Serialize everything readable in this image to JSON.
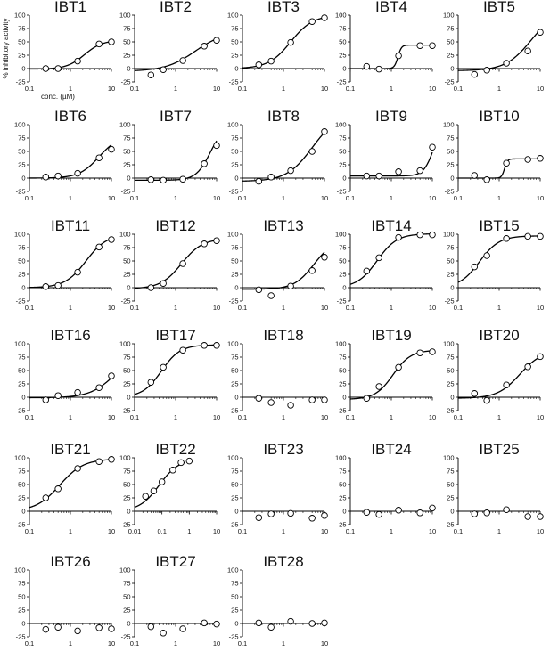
{
  "figure": {
    "ylabel": "% inhibitory activity",
    "xlabel": "conc. (µM)"
  },
  "chart_data": [
    {
      "title": "IBT1",
      "type": "scatter",
      "ylim": [
        -25,
        100
      ],
      "xscale": "log",
      "xlim": [
        0.1,
        10
      ],
      "xticks": [
        "0.1",
        "1",
        "10"
      ],
      "yticks": [
        "-25",
        "0",
        "25",
        "50",
        "75",
        "100"
      ],
      "points": {
        "x": [
          0.25,
          0.5,
          1.5,
          5,
          10
        ],
        "y": [
          0,
          0,
          14,
          46,
          50
        ]
      },
      "fit": {
        "bottom": -1,
        "top": 53,
        "ec50": 2.2,
        "hill": 2.0
      },
      "xlabel": "conc. (µM)",
      "ylabel": "% inhibitory activity"
    },
    {
      "title": "IBT2",
      "type": "scatter",
      "ylim": [
        -25,
        100
      ],
      "xscale": "log",
      "xlim": [
        0.1,
        10
      ],
      "xticks": [
        "0.1",
        "1",
        "10"
      ],
      "yticks": [
        "-25",
        "0",
        "25",
        "50",
        "75",
        "100"
      ],
      "points": {
        "x": [
          0.25,
          0.5,
          1.5,
          5,
          10
        ],
        "y": [
          -12,
          -2,
          15,
          42,
          53
        ]
      },
      "fit": {
        "bottom": -5,
        "top": 70,
        "ec50": 3,
        "hill": 1.2
      }
    },
    {
      "title": "IBT3",
      "type": "scatter",
      "ylim": [
        -25,
        100
      ],
      "xscale": "log",
      "xlim": [
        0.1,
        10
      ],
      "xticks": [
        "0.1",
        "1",
        "10"
      ],
      "yticks": [
        "-25",
        "0",
        "25",
        "50",
        "75",
        "100"
      ],
      "points": {
        "x": [
          0.25,
          0.5,
          1.5,
          5,
          10
        ],
        "y": [
          7,
          14,
          49,
          88,
          95
        ]
      },
      "fit": {
        "bottom": 0,
        "top": 100,
        "ec50": 1.5,
        "hill": 1.6
      }
    },
    {
      "title": "IBT4",
      "type": "scatter",
      "ylim": [
        -25,
        100
      ],
      "xscale": "log",
      "xlim": [
        0.1,
        10
      ],
      "xticks": [
        "0.1",
        "1",
        "10"
      ],
      "yticks": [
        "-25",
        "0",
        "25",
        "50",
        "75",
        "100"
      ],
      "points": {
        "x": [
          0.25,
          0.5,
          1.5,
          5,
          10
        ],
        "y": [
          4,
          -1,
          24,
          43,
          43
        ]
      },
      "fit": {
        "bottom": 0,
        "top": 44,
        "ec50": 1.45,
        "hill": 10
      }
    },
    {
      "title": "IBT5",
      "type": "scatter",
      "ylim": [
        -25,
        100
      ],
      "xscale": "log",
      "xlim": [
        0.1,
        10
      ],
      "xticks": [
        "0.1",
        "1",
        "10"
      ],
      "yticks": [
        "-25",
        "0",
        "25",
        "50",
        "75",
        "100"
      ],
      "points": {
        "x": [
          0.25,
          0.5,
          1.5,
          5,
          10
        ],
        "y": [
          -11,
          -3,
          10,
          33,
          68
        ]
      },
      "fit": {
        "bottom": -4,
        "top": 110,
        "ec50": 6,
        "hill": 1.4
      }
    },
    {
      "title": "IBT6",
      "type": "scatter",
      "ylim": [
        -25,
        100
      ],
      "xscale": "log",
      "xlim": [
        0.1,
        10
      ],
      "xticks": [
        "0.1",
        "1",
        "10"
      ],
      "yticks": [
        "-25",
        "0",
        "25",
        "50",
        "75",
        "100"
      ],
      "points": {
        "x": [
          0.25,
          0.5,
          1.5,
          5,
          10
        ],
        "y": [
          2,
          4,
          9,
          38,
          54
        ]
      },
      "fit": {
        "bottom": 0,
        "top": 80,
        "ec50": 5,
        "hill": 1.8
      }
    },
    {
      "title": "IBT7",
      "type": "scatter",
      "ylim": [
        -25,
        100
      ],
      "xscale": "log",
      "xlim": [
        0.1,
        10
      ],
      "xticks": [
        "0.1",
        "1",
        "10"
      ],
      "yticks": [
        "-25",
        "0",
        "25",
        "50",
        "75",
        "100"
      ],
      "points": {
        "x": [
          0.25,
          0.5,
          1.5,
          5,
          10
        ],
        "y": [
          -3,
          -4,
          -2,
          27,
          61
        ]
      },
      "fit": {
        "bottom": -4,
        "top": 100,
        "ec50": 7,
        "hill": 2.5
      }
    },
    {
      "title": "IBT8",
      "type": "scatter",
      "ylim": [
        -25,
        100
      ],
      "xscale": "log",
      "xlim": [
        0.1,
        10
      ],
      "xticks": [
        "0.1",
        "1",
        "10"
      ],
      "yticks": [
        "-25",
        "0",
        "25",
        "50",
        "75",
        "100"
      ],
      "points": {
        "x": [
          0.25,
          0.5,
          1.5,
          5,
          10
        ],
        "y": [
          -6,
          2,
          14,
          50,
          87
        ]
      },
      "fit": {
        "bottom": -6,
        "top": 120,
        "ec50": 5,
        "hill": 1.4
      }
    },
    {
      "title": "IBT9",
      "type": "scatter",
      "ylim": [
        -25,
        100
      ],
      "xscale": "log",
      "xlim": [
        0.1,
        10
      ],
      "xticks": [
        "0.1",
        "1",
        "10"
      ],
      "yticks": [
        "-25",
        "0",
        "25",
        "50",
        "75",
        "100"
      ],
      "points": {
        "x": [
          0.25,
          0.5,
          1.5,
          5,
          10
        ],
        "y": [
          4,
          4,
          12,
          14,
          58
        ]
      },
      "fit": {
        "bottom": 4,
        "top": 110,
        "ec50": 11,
        "hill": 3.5
      }
    },
    {
      "title": "IBT10",
      "type": "scatter",
      "ylim": [
        -25,
        100
      ],
      "xscale": "log",
      "xlim": [
        0.1,
        10
      ],
      "xticks": [
        "0.1",
        "1",
        "10"
      ],
      "yticks": [
        "-25",
        "0",
        "25",
        "50",
        "75",
        "100"
      ],
      "points": {
        "x": [
          0.25,
          0.5,
          1.5,
          5,
          10
        ],
        "y": [
          5,
          -3,
          28,
          35,
          37
        ]
      },
      "fit": {
        "bottom": 0,
        "top": 36,
        "ec50": 1.35,
        "hill": 12
      }
    },
    {
      "title": "IBT11",
      "type": "scatter",
      "ylim": [
        -25,
        100
      ],
      "xscale": "log",
      "xlim": [
        0.1,
        10
      ],
      "xticks": [
        "0.1",
        "1",
        "10"
      ],
      "yticks": [
        "-25",
        "0",
        "25",
        "50",
        "75",
        "100"
      ],
      "points": {
        "x": [
          0.25,
          0.5,
          1.5,
          5,
          10
        ],
        "y": [
          2,
          4,
          29,
          76,
          90
        ]
      },
      "fit": {
        "bottom": 0,
        "top": 100,
        "ec50": 2.4,
        "hill": 1.7
      }
    },
    {
      "title": "IBT12",
      "type": "scatter",
      "ylim": [
        -25,
        100
      ],
      "xscale": "log",
      "xlim": [
        0.1,
        10
      ],
      "xticks": [
        "0.1",
        "1",
        "10"
      ],
      "yticks": [
        "-25",
        "0",
        "25",
        "50",
        "75",
        "100"
      ],
      "points": {
        "x": [
          0.25,
          0.5,
          1.5,
          5,
          10
        ],
        "y": [
          0,
          8,
          45,
          82,
          88
        ]
      },
      "fit": {
        "bottom": -2,
        "top": 92,
        "ec50": 1.4,
        "hill": 1.7
      }
    },
    {
      "title": "IBT13",
      "type": "scatter",
      "ylim": [
        -25,
        100
      ],
      "xscale": "log",
      "xlim": [
        0.1,
        10
      ],
      "xticks": [
        "0.1",
        "1",
        "10"
      ],
      "yticks": [
        "-25",
        "0",
        "25",
        "50",
        "75",
        "100"
      ],
      "points": {
        "x": [
          0.25,
          0.5,
          1.5,
          5,
          10
        ],
        "y": [
          -4,
          -15,
          3,
          32,
          57
        ]
      },
      "fit": {
        "bottom": -3,
        "top": 90,
        "ec50": 5.5,
        "hill": 1.8
      }
    },
    {
      "title": "IBT14",
      "type": "scatter",
      "ylim": [
        -25,
        100
      ],
      "xscale": "log",
      "xlim": [
        0.1,
        10
      ],
      "xticks": [
        "0.1",
        "1",
        "10"
      ],
      "yticks": [
        "-25",
        "0",
        "25",
        "50",
        "75",
        "100"
      ],
      "points": {
        "x": [
          0.25,
          0.5,
          1.5,
          5,
          10
        ],
        "y": [
          31,
          56,
          94,
          99,
          99
        ]
      },
      "fit": {
        "bottom": 0,
        "top": 101,
        "ec50": 0.45,
        "hill": 1.8
      }
    },
    {
      "title": "IBT15",
      "type": "scatter",
      "ylim": [
        -25,
        100
      ],
      "xscale": "log",
      "xlim": [
        0.1,
        10
      ],
      "xticks": [
        "0.1",
        "1",
        "10"
      ],
      "yticks": [
        "-25",
        "0",
        "25",
        "50",
        "75",
        "100"
      ],
      "points": {
        "x": [
          0.25,
          0.5,
          1.5,
          5,
          10
        ],
        "y": [
          39,
          60,
          92,
          96,
          96
        ]
      },
      "fit": {
        "bottom": 0,
        "top": 97,
        "ec50": 0.33,
        "hill": 1.8
      }
    },
    {
      "title": "IBT16",
      "type": "scatter",
      "ylim": [
        -25,
        100
      ],
      "xscale": "log",
      "xlim": [
        0.1,
        10
      ],
      "xticks": [
        "0.1",
        "1",
        "10"
      ],
      "yticks": [
        "-25",
        "0",
        "25",
        "50",
        "75",
        "100"
      ],
      "points": {
        "x": [
          0.25,
          0.5,
          1.5,
          5,
          10
        ],
        "y": [
          -5,
          3,
          9,
          18,
          40
        ]
      },
      "fit": {
        "bottom": -1,
        "top": 90,
        "ec50": 13,
        "hill": 1.4
      }
    },
    {
      "title": "IBT17",
      "type": "scatter",
      "ylim": [
        -25,
        100
      ],
      "xscale": "log",
      "xlim": [
        0.1,
        10
      ],
      "xticks": [
        "0.1",
        "1",
        "10"
      ],
      "yticks": [
        "-25",
        "0",
        "25",
        "50",
        "75",
        "100"
      ],
      "points": {
        "x": [
          0.25,
          0.5,
          1.5,
          5,
          10
        ],
        "y": [
          28,
          56,
          88,
          97,
          97
        ]
      },
      "fit": {
        "bottom": 0,
        "top": 98,
        "ec50": 0.45,
        "hill": 1.9
      }
    },
    {
      "title": "IBT18",
      "type": "scatter",
      "ylim": [
        -25,
        100
      ],
      "xscale": "log",
      "xlim": [
        0.1,
        10
      ],
      "xticks": [
        "0.1",
        "1",
        "10"
      ],
      "yticks": [
        "-25",
        "0",
        "25",
        "50",
        "75",
        "100"
      ],
      "points": {
        "x": [
          0.25,
          0.5,
          1.5,
          5,
          10
        ],
        "y": [
          -2,
          -10,
          -15,
          -5,
          -5
        ]
      }
    },
    {
      "title": "IBT19",
      "type": "scatter",
      "ylim": [
        -25,
        100
      ],
      "xscale": "log",
      "xlim": [
        0.1,
        10
      ],
      "xticks": [
        "0.1",
        "1",
        "10"
      ],
      "yticks": [
        "-25",
        "0",
        "25",
        "50",
        "75",
        "100"
      ],
      "points": {
        "x": [
          0.25,
          0.5,
          1.5,
          5,
          10
        ],
        "y": [
          -2,
          20,
          56,
          83,
          85
        ]
      },
      "fit": {
        "bottom": -4,
        "top": 88,
        "ec50": 1.1,
        "hill": 2.0
      }
    },
    {
      "title": "IBT20",
      "type": "scatter",
      "ylim": [
        -25,
        100
      ],
      "xscale": "log",
      "xlim": [
        0.1,
        10
      ],
      "xticks": [
        "0.1",
        "1",
        "10"
      ],
      "yticks": [
        "-25",
        "0",
        "25",
        "50",
        "75",
        "100"
      ],
      "points": {
        "x": [
          0.25,
          0.5,
          1.5,
          5,
          10
        ],
        "y": [
          7,
          -6,
          23,
          57,
          76
        ]
      },
      "fit": {
        "bottom": -2,
        "top": 88,
        "ec50": 3.2,
        "hill": 1.6
      }
    },
    {
      "title": "IBT21",
      "type": "scatter",
      "ylim": [
        -25,
        100
      ],
      "xscale": "log",
      "xlim": [
        0.1,
        10
      ],
      "xticks": [
        "0.1",
        "1",
        "10"
      ],
      "yticks": [
        "-25",
        "0",
        "25",
        "50",
        "75",
        "100"
      ],
      "points": {
        "x": [
          0.25,
          0.5,
          1.5,
          5,
          10
        ],
        "y": [
          25,
          42,
          80,
          93,
          97
        ]
      },
      "fit": {
        "bottom": 0,
        "top": 98,
        "ec50": 0.55,
        "hill": 1.5
      }
    },
    {
      "title": "IBT22",
      "type": "scatter",
      "ylim": [
        -25,
        100
      ],
      "xscale": "log",
      "xlim": [
        0.01,
        10
      ],
      "xticks": [
        "0.01",
        "0.1",
        "1",
        "10"
      ],
      "yticks": [
        "-25",
        "0",
        "25",
        "50",
        "75",
        "100"
      ],
      "points": {
        "x": [
          0.025,
          0.05,
          0.1,
          0.25,
          0.5,
          1
        ],
        "y": [
          28,
          38,
          55,
          77,
          91,
          94
        ]
      },
      "fit": {
        "bottom": 0,
        "top": 98,
        "ec50": 0.08,
        "hill": 1.2,
        "xmax": 0.7
      }
    },
    {
      "title": "IBT23",
      "type": "scatter",
      "ylim": [
        -25,
        100
      ],
      "xscale": "log",
      "xlim": [
        0.1,
        10
      ],
      "xticks": [
        "0.1",
        "1",
        "10"
      ],
      "yticks": [
        "-25",
        "0",
        "25",
        "50",
        "75",
        "100"
      ],
      "points": {
        "x": [
          0.25,
          0.5,
          1.5,
          5,
          10
        ],
        "y": [
          -12,
          -5,
          -4,
          -13,
          -8
        ]
      }
    },
    {
      "title": "IBT24",
      "type": "scatter",
      "ylim": [
        -25,
        100
      ],
      "xscale": "log",
      "xlim": [
        0.1,
        10
      ],
      "xticks": [
        "0.1",
        "1",
        "10"
      ],
      "yticks": [
        "-25",
        "0",
        "25",
        "50",
        "75",
        "100"
      ],
      "points": {
        "x": [
          0.25,
          0.5,
          1.5,
          5,
          10
        ],
        "y": [
          -2,
          -6,
          2,
          -3,
          6
        ]
      }
    },
    {
      "title": "IBT25",
      "type": "scatter",
      "ylim": [
        -25,
        100
      ],
      "xscale": "log",
      "xlim": [
        0.1,
        10
      ],
      "xticks": [
        "0.1",
        "1",
        "10"
      ],
      "yticks": [
        "-25",
        "0",
        "25",
        "50",
        "75",
        "100"
      ],
      "points": {
        "x": [
          0.25,
          0.5,
          1.5,
          5,
          10
        ],
        "y": [
          -5,
          -3,
          3,
          -10,
          -10
        ]
      }
    },
    {
      "title": "IBT26",
      "type": "scatter",
      "ylim": [
        -25,
        100
      ],
      "xscale": "log",
      "xlim": [
        0.1,
        10
      ],
      "xticks": [
        "0.1",
        "1",
        "10"
      ],
      "yticks": [
        "-25",
        "0",
        "25",
        "50",
        "75",
        "100"
      ],
      "points": {
        "x": [
          0.25,
          0.5,
          1.5,
          5,
          10
        ],
        "y": [
          -11,
          -7,
          -14,
          -8,
          -10
        ]
      }
    },
    {
      "title": "IBT27",
      "type": "scatter",
      "ylim": [
        -25,
        100
      ],
      "xscale": "log",
      "xlim": [
        0.1,
        10
      ],
      "xticks": [
        "0.1",
        "1",
        "10"
      ],
      "yticks": [
        "-25",
        "0",
        "25",
        "50",
        "75",
        "100"
      ],
      "points": {
        "x": [
          0.25,
          0.5,
          1.5,
          5,
          10
        ],
        "y": [
          -6,
          -18,
          -10,
          1,
          -1
        ]
      }
    },
    {
      "title": "IBT28",
      "type": "scatter",
      "ylim": [
        -25,
        100
      ],
      "xscale": "log",
      "xlim": [
        0.1,
        10
      ],
      "xticks": [
        "0.1",
        "1",
        "10"
      ],
      "yticks": [
        "-25",
        "0",
        "25",
        "50",
        "75",
        "100"
      ],
      "points": {
        "x": [
          0.25,
          0.5,
          1.5,
          5,
          10
        ],
        "y": [
          1,
          -7,
          4,
          0,
          1
        ]
      }
    }
  ]
}
